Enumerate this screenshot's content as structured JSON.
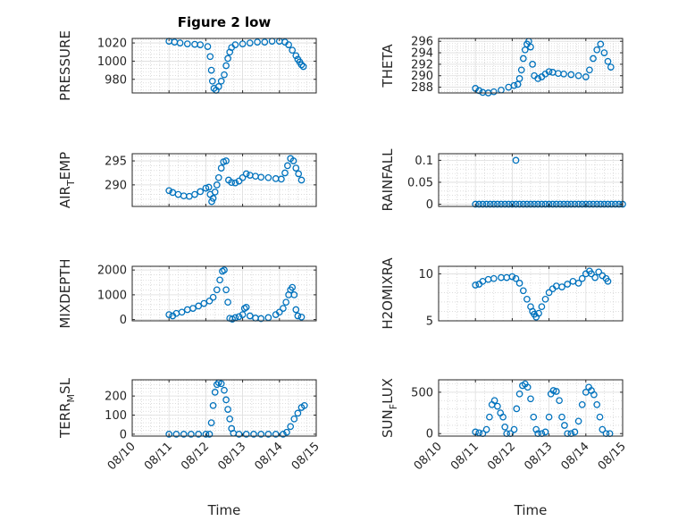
{
  "figure": {
    "title": "Figure 2 low",
    "xlabel": "Time"
  },
  "colors": {
    "marker": "#0072BD",
    "axis": "#262626",
    "grid": "#c8c8c8",
    "background": "#ffffff"
  },
  "chart_data": [
    {
      "id": "pressure",
      "type": "scatter",
      "title": "Figure 2 low",
      "ylabel": "PRESSURE",
      "ylim": [
        965,
        1025
      ],
      "yticks": [
        980,
        1000,
        1020
      ],
      "xlim": [
        0,
        5
      ],
      "xticks": [],
      "grid": true,
      "points": [
        [
          1,
          1022
        ],
        [
          1.15,
          1021
        ],
        [
          1.3,
          1020
        ],
        [
          1.5,
          1019
        ],
        [
          1.7,
          1018.5
        ],
        [
          1.85,
          1018
        ],
        [
          2.05,
          1016
        ],
        [
          2.12,
          1005
        ],
        [
          2.15,
          990
        ],
        [
          2.18,
          978
        ],
        [
          2.22,
          970
        ],
        [
          2.28,
          968
        ],
        [
          2.35,
          972
        ],
        [
          2.42,
          978
        ],
        [
          2.5,
          985
        ],
        [
          2.55,
          995
        ],
        [
          2.6,
          1003
        ],
        [
          2.65,
          1010
        ],
        [
          2.7,
          1015
        ],
        [
          2.8,
          1018
        ],
        [
          3.0,
          1019
        ],
        [
          3.2,
          1020
        ],
        [
          3.4,
          1021
        ],
        [
          3.6,
          1021
        ],
        [
          3.8,
          1022
        ],
        [
          4.0,
          1022
        ],
        [
          4.15,
          1021
        ],
        [
          4.25,
          1018
        ],
        [
          4.35,
          1012
        ],
        [
          4.45,
          1006
        ],
        [
          4.5,
          1002
        ],
        [
          4.55,
          999
        ],
        [
          4.6,
          996
        ],
        [
          4.65,
          994
        ]
      ]
    },
    {
      "id": "theta",
      "type": "scatter",
      "title": "",
      "ylabel": "THETA",
      "ylim": [
        287,
        296.5
      ],
      "yticks": [
        288,
        290,
        292,
        294,
        296
      ],
      "xlim": [
        0,
        5
      ],
      "xticks": [],
      "grid": true,
      "points": [
        [
          1,
          287.8
        ],
        [
          1.1,
          287.4
        ],
        [
          1.2,
          287.1
        ],
        [
          1.35,
          287.0
        ],
        [
          1.5,
          287.2
        ],
        [
          1.7,
          287.5
        ],
        [
          1.9,
          288.0
        ],
        [
          2.05,
          288.3
        ],
        [
          2.15,
          288.5
        ],
        [
          2.2,
          289.5
        ],
        [
          2.25,
          291.0
        ],
        [
          2.3,
          293.0
        ],
        [
          2.35,
          294.5
        ],
        [
          2.4,
          295.5
        ],
        [
          2.45,
          296.0
        ],
        [
          2.5,
          295.0
        ],
        [
          2.55,
          292.0
        ],
        [
          2.6,
          290.0
        ],
        [
          2.7,
          289.5
        ],
        [
          2.8,
          289.8
        ],
        [
          2.9,
          290.3
        ],
        [
          3.0,
          290.7
        ],
        [
          3.1,
          290.6
        ],
        [
          3.25,
          290.4
        ],
        [
          3.4,
          290.3
        ],
        [
          3.6,
          290.2
        ],
        [
          3.8,
          290.0
        ],
        [
          4.0,
          289.8
        ],
        [
          4.1,
          291.0
        ],
        [
          4.2,
          293.0
        ],
        [
          4.3,
          294.5
        ],
        [
          4.4,
          295.5
        ],
        [
          4.5,
          294.0
        ],
        [
          4.6,
          292.5
        ],
        [
          4.68,
          291.5
        ]
      ]
    },
    {
      "id": "air_temp",
      "type": "scatter",
      "title": "",
      "ylabel": "AIR_TEMP",
      "ylim": [
        285.5,
        296.5
      ],
      "yticks": [
        290,
        295
      ],
      "xlim": [
        0,
        5
      ],
      "xticks": [],
      "grid": true,
      "points": [
        [
          1,
          288.8
        ],
        [
          1.1,
          288.4
        ],
        [
          1.25,
          288.0
        ],
        [
          1.4,
          287.7
        ],
        [
          1.55,
          287.6
        ],
        [
          1.7,
          288.0
        ],
        [
          1.85,
          288.6
        ],
        [
          2.0,
          289.3
        ],
        [
          2.08,
          289.5
        ],
        [
          2.12,
          288.0
        ],
        [
          2.16,
          286.5
        ],
        [
          2.2,
          287.2
        ],
        [
          2.25,
          288.5
        ],
        [
          2.3,
          290.0
        ],
        [
          2.35,
          291.5
        ],
        [
          2.42,
          293.5
        ],
        [
          2.48,
          294.8
        ],
        [
          2.55,
          295.0
        ],
        [
          2.62,
          291.0
        ],
        [
          2.7,
          290.5
        ],
        [
          2.8,
          290.4
        ],
        [
          2.9,
          290.8
        ],
        [
          3.0,
          291.5
        ],
        [
          3.1,
          292.3
        ],
        [
          3.2,
          292.0
        ],
        [
          3.35,
          291.8
        ],
        [
          3.5,
          291.6
        ],
        [
          3.7,
          291.5
        ],
        [
          3.9,
          291.3
        ],
        [
          4.05,
          291.2
        ],
        [
          4.15,
          292.5
        ],
        [
          4.22,
          294.0
        ],
        [
          4.3,
          295.5
        ],
        [
          4.38,
          295.0
        ],
        [
          4.45,
          293.5
        ],
        [
          4.52,
          292.3
        ],
        [
          4.6,
          291.0
        ]
      ]
    },
    {
      "id": "rainfall",
      "type": "scatter",
      "title": "",
      "ylabel": "RAINFALL",
      "ylim": [
        -0.005,
        0.115
      ],
      "yticks": [
        0,
        0.05,
        0.1
      ],
      "yticklabels": [
        "0",
        "0.05",
        "0.1"
      ],
      "xlim": [
        0,
        5
      ],
      "xticks": [],
      "grid": true,
      "points": [
        [
          1,
          0
        ],
        [
          1.1,
          0
        ],
        [
          1.2,
          0
        ],
        [
          1.3,
          0
        ],
        [
          1.4,
          0
        ],
        [
          1.5,
          0
        ],
        [
          1.6,
          0
        ],
        [
          1.7,
          0
        ],
        [
          1.8,
          0
        ],
        [
          1.9,
          0
        ],
        [
          2.0,
          0
        ],
        [
          2.1,
          0
        ],
        [
          2.2,
          0
        ],
        [
          2.3,
          0
        ],
        [
          2.4,
          0
        ],
        [
          2.5,
          0
        ],
        [
          2.6,
          0
        ],
        [
          2.7,
          0
        ],
        [
          2.8,
          0
        ],
        [
          2.9,
          0
        ],
        [
          3.0,
          0
        ],
        [
          3.1,
          0
        ],
        [
          3.2,
          0
        ],
        [
          3.3,
          0
        ],
        [
          3.4,
          0
        ],
        [
          3.5,
          0
        ],
        [
          3.6,
          0
        ],
        [
          3.7,
          0
        ],
        [
          3.8,
          0
        ],
        [
          3.9,
          0
        ],
        [
          4.0,
          0
        ],
        [
          4.1,
          0
        ],
        [
          4.2,
          0
        ],
        [
          4.3,
          0
        ],
        [
          4.4,
          0
        ],
        [
          4.5,
          0
        ],
        [
          4.6,
          0
        ],
        [
          4.7,
          0
        ],
        [
          4.8,
          0
        ],
        [
          4.9,
          0
        ],
        [
          5.0,
          0
        ],
        [
          2.1,
          0.1
        ]
      ]
    },
    {
      "id": "mixdepth",
      "type": "scatter",
      "title": "",
      "ylabel": "MIXDEPTH",
      "ylim": [
        -50,
        2150
      ],
      "yticks": [
        0,
        1000,
        2000
      ],
      "xlim": [
        0,
        5
      ],
      "xticks": [],
      "grid": true,
      "points": [
        [
          1,
          200
        ],
        [
          1.1,
          150
        ],
        [
          1.2,
          250
        ],
        [
          1.35,
          300
        ],
        [
          1.5,
          400
        ],
        [
          1.65,
          450
        ],
        [
          1.8,
          550
        ],
        [
          1.95,
          650
        ],
        [
          2.1,
          750
        ],
        [
          2.2,
          900
        ],
        [
          2.3,
          1200
        ],
        [
          2.38,
          1600
        ],
        [
          2.45,
          1950
        ],
        [
          2.5,
          2000
        ],
        [
          2.55,
          1200
        ],
        [
          2.6,
          700
        ],
        [
          2.65,
          50
        ],
        [
          2.72,
          20
        ],
        [
          2.8,
          80
        ],
        [
          2.9,
          120
        ],
        [
          3.0,
          200
        ],
        [
          3.05,
          450
        ],
        [
          3.1,
          500
        ],
        [
          3.2,
          150
        ],
        [
          3.35,
          60
        ],
        [
          3.5,
          40
        ],
        [
          3.7,
          80
        ],
        [
          3.9,
          200
        ],
        [
          4.0,
          300
        ],
        [
          4.1,
          450
        ],
        [
          4.18,
          700
        ],
        [
          4.25,
          1000
        ],
        [
          4.3,
          1200
        ],
        [
          4.35,
          1300
        ],
        [
          4.4,
          1000
        ],
        [
          4.45,
          400
        ],
        [
          4.5,
          150
        ],
        [
          4.6,
          100
        ]
      ]
    },
    {
      "id": "h2omixra",
      "type": "scatter",
      "title": "",
      "ylabel": "H2OMIXRA",
      "ylim": [
        5,
        10.8
      ],
      "yticks": [
        5,
        10
      ],
      "xlim": [
        0,
        5
      ],
      "xticks": [],
      "grid": true,
      "points": [
        [
          1,
          8.8
        ],
        [
          1.1,
          8.9
        ],
        [
          1.2,
          9.2
        ],
        [
          1.35,
          9.4
        ],
        [
          1.5,
          9.5
        ],
        [
          1.7,
          9.6
        ],
        [
          1.85,
          9.6
        ],
        [
          2.0,
          9.7
        ],
        [
          2.1,
          9.5
        ],
        [
          2.2,
          9.0
        ],
        [
          2.3,
          8.2
        ],
        [
          2.4,
          7.3
        ],
        [
          2.5,
          6.5
        ],
        [
          2.55,
          6.0
        ],
        [
          2.6,
          5.7
        ],
        [
          2.65,
          5.4
        ],
        [
          2.72,
          5.8
        ],
        [
          2.8,
          6.5
        ],
        [
          2.9,
          7.3
        ],
        [
          3.0,
          8.0
        ],
        [
          3.1,
          8.4
        ],
        [
          3.2,
          8.7
        ],
        [
          3.35,
          8.6
        ],
        [
          3.5,
          8.9
        ],
        [
          3.65,
          9.2
        ],
        [
          3.8,
          9.0
        ],
        [
          3.9,
          9.5
        ],
        [
          4.0,
          10.0
        ],
        [
          4.1,
          10.3
        ],
        [
          4.15,
          10.0
        ],
        [
          4.25,
          9.6
        ],
        [
          4.35,
          10.2
        ],
        [
          4.45,
          9.8
        ],
        [
          4.55,
          9.5
        ],
        [
          4.6,
          9.2
        ]
      ]
    },
    {
      "id": "terr_msl",
      "type": "scatter",
      "title": "",
      "ylabel": "TERR_MSL",
      "ylim": [
        -10,
        285
      ],
      "yticks": [
        0,
        100,
        200
      ],
      "xlim": [
        0,
        5
      ],
      "xticks": [
        "08/10",
        "08/11",
        "08/12",
        "08/13",
        "08/14",
        "08/15"
      ],
      "xlabel": "Time",
      "grid": true,
      "points": [
        [
          1,
          0
        ],
        [
          1.2,
          0
        ],
        [
          1.4,
          0
        ],
        [
          1.6,
          0
        ],
        [
          1.8,
          0
        ],
        [
          2.0,
          0
        ],
        [
          2.1,
          0
        ],
        [
          2.15,
          60
        ],
        [
          2.2,
          150
        ],
        [
          2.25,
          220
        ],
        [
          2.3,
          260
        ],
        [
          2.35,
          270
        ],
        [
          2.42,
          265
        ],
        [
          2.5,
          230
        ],
        [
          2.55,
          180
        ],
        [
          2.6,
          130
        ],
        [
          2.65,
          80
        ],
        [
          2.7,
          30
        ],
        [
          2.75,
          5
        ],
        [
          2.9,
          0
        ],
        [
          3.1,
          0
        ],
        [
          3.3,
          0
        ],
        [
          3.5,
          0
        ],
        [
          3.7,
          0
        ],
        [
          3.9,
          0
        ],
        [
          4.1,
          0
        ],
        [
          4.2,
          10
        ],
        [
          4.3,
          40
        ],
        [
          4.4,
          80
        ],
        [
          4.5,
          110
        ],
        [
          4.6,
          140
        ],
        [
          4.68,
          150
        ]
      ]
    },
    {
      "id": "sun_flux",
      "type": "scatter",
      "title": "",
      "ylabel": "SUN_FLUX",
      "ylim": [
        -30,
        650
      ],
      "yticks": [
        0,
        500
      ],
      "xlim": [
        0,
        5
      ],
      "xticks": [
        "08/10",
        "08/11",
        "08/12",
        "08/13",
        "08/14",
        "08/15"
      ],
      "xlabel": "Time",
      "grid": true,
      "points": [
        [
          1,
          20
        ],
        [
          1.1,
          10
        ],
        [
          1.2,
          0
        ],
        [
          1.3,
          50
        ],
        [
          1.38,
          200
        ],
        [
          1.45,
          350
        ],
        [
          1.52,
          400
        ],
        [
          1.6,
          330
        ],
        [
          1.68,
          250
        ],
        [
          1.75,
          200
        ],
        [
          1.8,
          80
        ],
        [
          1.85,
          0
        ],
        [
          1.95,
          0
        ],
        [
          2.05,
          50
        ],
        [
          2.12,
          300
        ],
        [
          2.2,
          480
        ],
        [
          2.28,
          580
        ],
        [
          2.35,
          600
        ],
        [
          2.42,
          560
        ],
        [
          2.5,
          420
        ],
        [
          2.58,
          200
        ],
        [
          2.65,
          50
        ],
        [
          2.7,
          0
        ],
        [
          2.8,
          0
        ],
        [
          2.9,
          20
        ],
        [
          3.0,
          200
        ],
        [
          3.05,
          480
        ],
        [
          3.12,
          520
        ],
        [
          3.2,
          510
        ],
        [
          3.28,
          400
        ],
        [
          3.35,
          200
        ],
        [
          3.42,
          100
        ],
        [
          3.5,
          0
        ],
        [
          3.6,
          0
        ],
        [
          3.7,
          20
        ],
        [
          3.8,
          150
        ],
        [
          3.9,
          350
        ],
        [
          4.0,
          500
        ],
        [
          4.08,
          560
        ],
        [
          4.15,
          520
        ],
        [
          4.22,
          470
        ],
        [
          4.3,
          350
        ],
        [
          4.38,
          200
        ],
        [
          4.45,
          50
        ],
        [
          4.55,
          0
        ],
        [
          4.65,
          0
        ]
      ]
    }
  ],
  "ylabels_rendered": [
    {
      "main": "PRESSURE",
      "sub": "",
      "post": ""
    },
    {
      "main": "THETA",
      "sub": "",
      "post": ""
    },
    {
      "main": "AIR",
      "sub": "T",
      "post": "EMP"
    },
    {
      "main": "RAINFALL",
      "sub": "",
      "post": ""
    },
    {
      "main": "MIXDEPTH",
      "sub": "",
      "post": ""
    },
    {
      "main": "H2OMIXRA",
      "sub": "",
      "post": ""
    },
    {
      "main": "TERR",
      "sub": "M",
      "post": "SL"
    },
    {
      "main": "SUN",
      "sub": "F",
      "post": "LUX"
    }
  ]
}
